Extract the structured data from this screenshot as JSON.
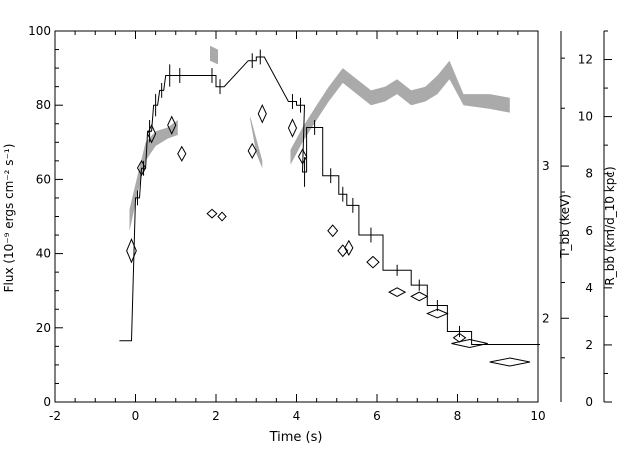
{
  "chart_data": {
    "type": "line",
    "title": "",
    "xlabel": "Time (s)",
    "ylabel": "Flux (10⁻⁹ ergs cm⁻² s⁻¹)",
    "y2label": "T_bb (keV)",
    "y3label": "R_bb (km/d_10 kpc)",
    "xlim": [
      -2,
      10
    ],
    "ylim": [
      0,
      100
    ],
    "x_ticks": [
      "-2",
      "0",
      "2",
      "4",
      "6",
      "8",
      "10"
    ],
    "y_ticks": [
      "0",
      "20",
      "40",
      "60",
      "80",
      "100"
    ],
    "t_ticks": [
      "2",
      "3"
    ],
    "r_ticks": [
      "0",
      "2",
      "4",
      "6",
      "8",
      "10",
      "12"
    ],
    "rlim": [
      0,
      13
    ],
    "series": [
      {
        "name": "",
        "kind": "step-flux",
        "points": [
          {
            "x": -0.25,
            "y": 16.5,
            "xerr": 0.15,
            "yerr": 0
          },
          {
            "x": 0.05,
            "y": 55,
            "xerr": 0.05,
            "yerr": 2
          },
          {
            "x": 0.2,
            "y": 63,
            "xerr": 0.05,
            "yerr": 2
          },
          {
            "x": 0.35,
            "y": 73,
            "xerr": 0.05,
            "yerr": 3
          },
          {
            "x": 0.5,
            "y": 80,
            "xerr": 0.05,
            "yerr": 3
          },
          {
            "x": 0.65,
            "y": 84,
            "xerr": 0.05,
            "yerr": 2
          },
          {
            "x": 0.85,
            "y": 88,
            "xerr": 0.1,
            "yerr": 3
          },
          {
            "x": 1.1,
            "y": 88,
            "xerr": 0.1,
            "yerr": 2
          },
          {
            "x": 1.9,
            "y": 88,
            "xerr": 0.1,
            "yerr": 2
          },
          {
            "x": 2.1,
            "y": 85,
            "xerr": 0.1,
            "yerr": 2
          },
          {
            "x": 2.9,
            "y": 92,
            "xerr": 0.1,
            "yerr": 2
          },
          {
            "x": 3.1,
            "y": 93,
            "xerr": 0.1,
            "yerr": 2
          },
          {
            "x": 3.9,
            "y": 81,
            "xerr": 0.1,
            "yerr": 2
          },
          {
            "x": 4.1,
            "y": 80,
            "xerr": 0.1,
            "yerr": 2
          },
          {
            "x": 4.2,
            "y": 62,
            "xerr": 0.05,
            "yerr": 4
          },
          {
            "x": 4.45,
            "y": 74,
            "xerr": 0.2,
            "yerr": 2
          },
          {
            "x": 4.85,
            "y": 61,
            "xerr": 0.2,
            "yerr": 2
          },
          {
            "x": 5.15,
            "y": 56,
            "xerr": 0.1,
            "yerr": 2
          },
          {
            "x": 5.4,
            "y": 53,
            "xerr": 0.15,
            "yerr": 2
          },
          {
            "x": 5.85,
            "y": 45,
            "xerr": 0.3,
            "yerr": 2
          },
          {
            "x": 6.5,
            "y": 35.5,
            "xerr": 0.35,
            "yerr": 1.5
          },
          {
            "x": 7.05,
            "y": 31.5,
            "xerr": 0.2,
            "yerr": 1.5
          },
          {
            "x": 7.5,
            "y": 26,
            "xerr": 0.25,
            "yerr": 1.5
          },
          {
            "x": 8.05,
            "y": 19,
            "xerr": 0.3,
            "yerr": 1.5
          },
          {
            "x": 9.2,
            "y": 15.5,
            "xerr": 0.85,
            "yerr": 0
          }
        ]
      },
      {
        "name": "",
        "kind": "diamond-radius",
        "points": [
          {
            "x": -0.1,
            "y": 5.3,
            "xerr": 0.12,
            "yerr": 0.4
          },
          {
            "x": 0.15,
            "y": 8.2,
            "xerr": 0.1,
            "yerr": 0.25
          },
          {
            "x": 0.4,
            "y": 9.4,
            "xerr": 0.1,
            "yerr": 0.3
          },
          {
            "x": 0.9,
            "y": 9.7,
            "xerr": 0.1,
            "yerr": 0.3
          },
          {
            "x": 1.15,
            "y": 8.7,
            "xerr": 0.1,
            "yerr": 0.25
          },
          {
            "x": 1.9,
            "y": 6.6,
            "xerr": 0.12,
            "yerr": 0.15
          },
          {
            "x": 2.15,
            "y": 6.5,
            "xerr": 0.1,
            "yerr": 0.15
          },
          {
            "x": 2.9,
            "y": 8.8,
            "xerr": 0.1,
            "yerr": 0.25
          },
          {
            "x": 3.15,
            "y": 10.1,
            "xerr": 0.1,
            "yerr": 0.3
          },
          {
            "x": 3.9,
            "y": 9.6,
            "xerr": 0.1,
            "yerr": 0.3
          },
          {
            "x": 4.15,
            "y": 8.6,
            "xerr": 0.1,
            "yerr": 0.25
          },
          {
            "x": 4.9,
            "y": 6.0,
            "xerr": 0.12,
            "yerr": 0.2
          },
          {
            "x": 5.15,
            "y": 5.3,
            "xerr": 0.12,
            "yerr": 0.2
          },
          {
            "x": 5.3,
            "y": 5.4,
            "xerr": 0.1,
            "yerr": 0.25
          },
          {
            "x": 5.9,
            "y": 4.9,
            "xerr": 0.15,
            "yerr": 0.2
          },
          {
            "x": 6.5,
            "y": 3.85,
            "xerr": 0.2,
            "yerr": 0.15
          },
          {
            "x": 7.05,
            "y": 3.7,
            "xerr": 0.2,
            "yerr": 0.15
          },
          {
            "x": 7.5,
            "y": 3.1,
            "xerr": 0.25,
            "yerr": 0.15
          },
          {
            "x": 8.05,
            "y": 2.25,
            "xerr": 0.15,
            "yerr": 0.15
          },
          {
            "x": 8.3,
            "y": 2.05,
            "xerr": 0.45,
            "yerr": 0.12
          },
          {
            "x": 9.3,
            "y": 1.4,
            "xerr": 0.5,
            "yerr": 0.12
          }
        ]
      },
      {
        "name": "",
        "kind": "temperature-band",
        "color": "#aaaaaa",
        "segments": [
          [
            {
              "x": -0.15,
              "lo": 46,
              "hi": 52
            },
            {
              "x": 0.05,
              "lo": 56,
              "hi": 61
            },
            {
              "x": 0.25,
              "lo": 65,
              "hi": 70
            },
            {
              "x": 0.5,
              "lo": 69,
              "hi": 73
            },
            {
              "x": 0.8,
              "lo": 71,
              "hi": 74
            },
            {
              "x": 1.05,
              "lo": 72,
              "hi": 76
            }
          ],
          [
            {
              "x": 1.85,
              "lo": 92,
              "hi": 96
            },
            {
              "x": 2.05,
              "lo": 91,
              "hi": 95
            }
          ],
          [
            {
              "x": 2.85,
              "lo": 76,
              "hi": 77
            },
            {
              "x": 3.0,
              "lo": 67,
              "hi": 71
            },
            {
              "x": 3.15,
              "lo": 63,
              "hi": 65
            }
          ],
          [
            {
              "x": 3.85,
              "lo": 64,
              "hi": 68
            },
            {
              "x": 4.15,
              "lo": 70,
              "hi": 74
            },
            {
              "x": 4.5,
              "lo": 76,
              "hi": 80
            },
            {
              "x": 4.8,
              "lo": 81,
              "hi": 85
            },
            {
              "x": 5.15,
              "lo": 86,
              "hi": 90
            },
            {
              "x": 5.5,
              "lo": 83,
              "hi": 87
            },
            {
              "x": 5.85,
              "lo": 80,
              "hi": 84
            },
            {
              "x": 6.2,
              "lo": 81,
              "hi": 85
            },
            {
              "x": 6.5,
              "lo": 83,
              "hi": 87
            },
            {
              "x": 6.85,
              "lo": 80,
              "hi": 84
            },
            {
              "x": 7.2,
              "lo": 81,
              "hi": 85
            },
            {
              "x": 7.5,
              "lo": 83,
              "hi": 88
            },
            {
              "x": 7.8,
              "lo": 87,
              "hi": 92
            },
            {
              "x": 8.15,
              "lo": 80,
              "hi": 83
            },
            {
              "x": 8.8,
              "lo": 79,
              "hi": 83
            },
            {
              "x": 9.3,
              "lo": 78,
              "hi": 82
            }
          ]
        ]
      }
    ],
    "grid": false,
    "legend": "none"
  }
}
